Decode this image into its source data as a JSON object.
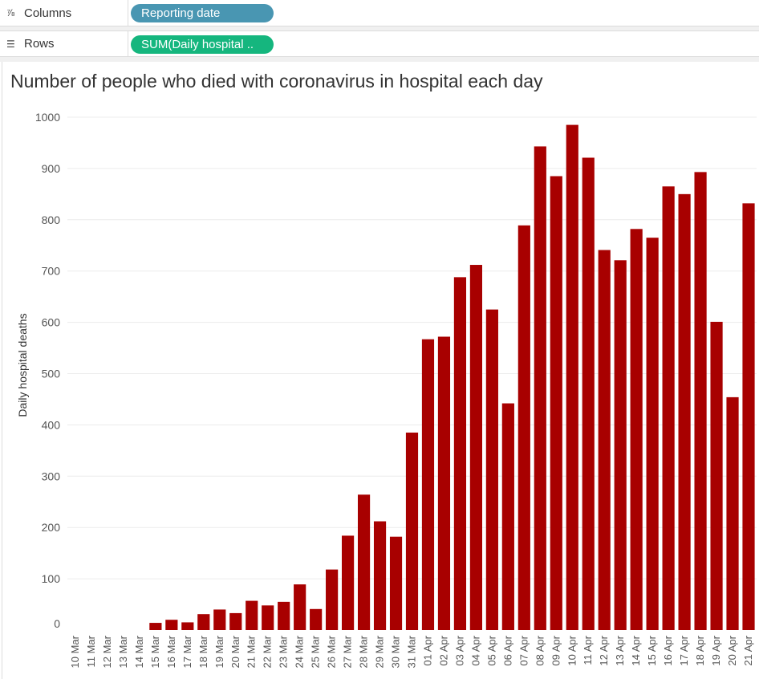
{
  "shelves": {
    "columns": {
      "label": "Columns",
      "icon": "columns-icon",
      "pill": "Reporting date",
      "pill_color": "#4996b2"
    },
    "rows": {
      "label": "Rows",
      "icon": "rows-icon",
      "pill": "SUM(Daily hospital ..",
      "pill_color": "#15b67e"
    }
  },
  "chart_data": {
    "type": "bar",
    "title": "Number of people who died with coronavirus in hospital each day",
    "xlabel": "",
    "ylabel": "Daily hospital deaths",
    "ylim": [
      0,
      1000
    ],
    "yticks": [
      0,
      100,
      200,
      300,
      400,
      500,
      600,
      700,
      800,
      900,
      1000
    ],
    "grid": true,
    "bar_color": "#a80000",
    "categories": [
      "10 Mar",
      "11 Mar",
      "12 Mar",
      "13 Mar",
      "14 Mar",
      "15 Mar",
      "16 Mar",
      "17 Mar",
      "18 Mar",
      "19 Mar",
      "20 Mar",
      "21 Mar",
      "22 Mar",
      "23 Mar",
      "24 Mar",
      "25 Mar",
      "26 Mar",
      "27 Mar",
      "28 Mar",
      "29 Mar",
      "30 Mar",
      "31 Mar",
      "01 Apr",
      "02 Apr",
      "03 Apr",
      "04 Apr",
      "05 Apr",
      "06 Apr",
      "07 Apr",
      "08 Apr",
      "09 Apr",
      "10 Apr",
      "11 Apr",
      "12 Apr",
      "13 Apr",
      "14 Apr",
      "15 Apr",
      "16 Apr",
      "17 Apr",
      "18 Apr",
      "19 Apr",
      "20 Apr",
      "21 Apr"
    ],
    "values": [
      0,
      0,
      0,
      0,
      0,
      14,
      20,
      15,
      31,
      40,
      33,
      57,
      48,
      55,
      89,
      41,
      118,
      184,
      264,
      212,
      182,
      385,
      567,
      572,
      688,
      712,
      625,
      442,
      789,
      943,
      885,
      985,
      921,
      741,
      721,
      782,
      765,
      865,
      850,
      893,
      601,
      454,
      832
    ]
  }
}
